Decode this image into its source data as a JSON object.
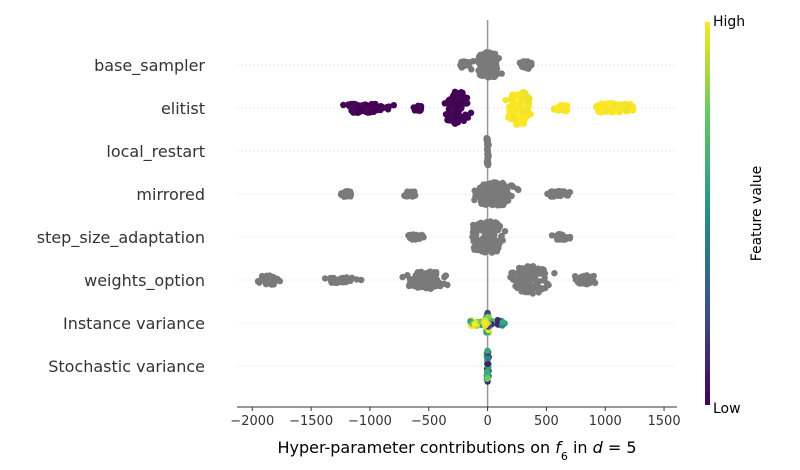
{
  "chart_data": {
    "type": "scatter",
    "subtype": "beeswarm",
    "xlabel": "Hyper-parameter contributions on f6 in d = 5",
    "xlim": [
      -2130,
      1610
    ],
    "xticks": [
      -2000,
      -1500,
      -1000,
      -500,
      0,
      500,
      1000,
      1500
    ],
    "xtick_labels": [
      "−2000",
      "−1500",
      "−1000",
      "−500",
      "0",
      "500",
      "1000",
      "1500"
    ],
    "colorbar": {
      "label": "Feature value",
      "high_label": "High",
      "low_label": "Low",
      "colors": [
        "#440154",
        "#3b528b",
        "#21918c",
        "#5ec962",
        "#fde725"
      ]
    },
    "neutral_color": "#7a7a7a",
    "features": [
      {
        "name": "base_sampler",
        "colored": false,
        "clusters": [
          {
            "center": 0,
            "spread": 230,
            "count": 130,
            "height": 13
          },
          {
            "center": -200,
            "spread": 80,
            "count": 20,
            "height": 4
          },
          {
            "center": 330,
            "spread": 110,
            "count": 25,
            "height": 4
          }
        ]
      },
      {
        "name": "elitist",
        "colored": true,
        "clusters": [
          {
            "center": -260,
            "spread": 180,
            "count": 110,
            "height": 17,
            "value": 0.0
          },
          {
            "center": 270,
            "spread": 200,
            "count": 110,
            "height": 17,
            "value": 1.0
          },
          {
            "center": -1050,
            "spread": 380,
            "count": 90,
            "height": 5,
            "value": 0.0
          },
          {
            "center": -590,
            "spread": 80,
            "count": 20,
            "height": 3,
            "value": 0.0
          },
          {
            "center": 1070,
            "spread": 380,
            "count": 90,
            "height": 5,
            "value": 1.0
          },
          {
            "center": 620,
            "spread": 120,
            "count": 25,
            "height": 4,
            "value": 1.0
          }
        ]
      },
      {
        "name": "local_restart",
        "colored": false,
        "clusters": [
          {
            "center": 0,
            "spread": 25,
            "count": 30,
            "height": 15
          }
        ]
      },
      {
        "name": "mirrored",
        "colored": false,
        "clusters": [
          {
            "center": 60,
            "spread": 300,
            "count": 140,
            "height": 12
          },
          {
            "center": -1200,
            "spread": 110,
            "count": 25,
            "height": 3
          },
          {
            "center": -660,
            "spread": 110,
            "count": 25,
            "height": 3
          },
          {
            "center": 600,
            "spread": 200,
            "count": 40,
            "height": 3
          }
        ]
      },
      {
        "name": "step_size_adaptation",
        "colored": false,
        "clusters": [
          {
            "center": 0,
            "spread": 300,
            "count": 150,
            "height": 16
          },
          {
            "center": -610,
            "spread": 150,
            "count": 30,
            "height": 3
          },
          {
            "center": 630,
            "spread": 150,
            "count": 30,
            "height": 3
          }
        ]
      },
      {
        "name": "weights_option",
        "colored": false,
        "clusters": [
          {
            "center": -520,
            "spread": 320,
            "count": 110,
            "height": 9
          },
          {
            "center": 360,
            "spread": 310,
            "count": 120,
            "height": 14
          },
          {
            "center": -1850,
            "spread": 180,
            "count": 40,
            "height": 5
          },
          {
            "center": -1270,
            "spread": 280,
            "count": 50,
            "height": 3
          },
          {
            "center": 820,
            "spread": 230,
            "count": 45,
            "height": 5
          }
        ]
      },
      {
        "name": "Instance variance",
        "colored": true,
        "clusters": [
          {
            "center": -100,
            "spread": 140,
            "count": 25,
            "height": 3,
            "value": 1.0
          },
          {
            "center": 90,
            "spread": 130,
            "count": 20,
            "height": 3,
            "value": 0.25
          },
          {
            "center": 0,
            "spread": 35,
            "count": 35,
            "height": 11,
            "value": 0.55
          },
          {
            "center": -20,
            "spread": 25,
            "count": 8,
            "height": 3,
            "value": 0.75
          }
        ]
      },
      {
        "name": "Stochastic variance",
        "colored": true,
        "clusters": [
          {
            "center": 0,
            "spread": 20,
            "count": 45,
            "height": 16,
            "value": 0.5
          }
        ]
      }
    ]
  }
}
